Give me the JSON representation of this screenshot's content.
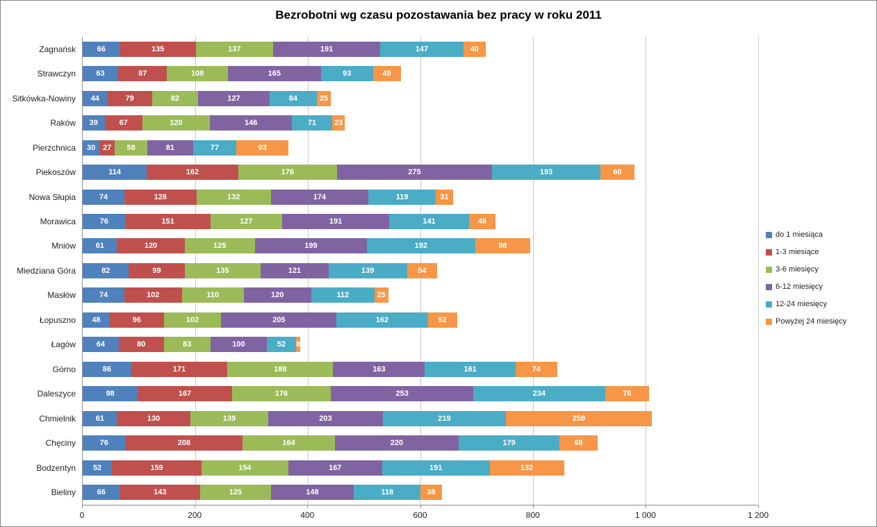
{
  "chart_data": {
    "type": "bar",
    "orientation": "horizontal",
    "stacked": true,
    "title": "Bezrobotni wg czasu pozostawania bez pracy w roku 2011",
    "categories": [
      "Zagnańsk",
      "Strawczyn",
      "Sitkówka-Nowiny",
      "Raków",
      "Pierzchnica",
      "Piekoszów",
      "Nowa Słupia",
      "Morawica",
      "Mniów",
      "Miedziana Góra",
      "Masłów",
      "Łopuszno",
      "Łagów",
      "Górno",
      "Daleszyce",
      "Chmielnik",
      "Chęciny",
      "Bodzentyn",
      "Bieliny"
    ],
    "series": [
      {
        "name": "do 1 miesiąca",
        "color": "#4F81BD",
        "values": [
          66,
          63,
          44,
          39,
          30,
          114,
          74,
          76,
          61,
          82,
          74,
          48,
          64,
          86,
          98,
          61,
          76,
          52,
          66
        ]
      },
      {
        "name": "1-3 miesiące",
        "color": "#C0504D",
        "values": [
          135,
          87,
          79,
          67,
          27,
          162,
          128,
          151,
          120,
          99,
          102,
          96,
          80,
          171,
          167,
          130,
          208,
          159,
          143
        ]
      },
      {
        "name": "3-6 miesięcy",
        "color": "#9BBB59",
        "values": [
          137,
          108,
          82,
          120,
          58,
          176,
          132,
          127,
          125,
          135,
          110,
          102,
          83,
          188,
          176,
          139,
          164,
          154,
          125
        ]
      },
      {
        "name": "6-12 miesięcy",
        "color": "#8064A2",
        "values": [
          191,
          165,
          127,
          146,
          81,
          275,
          174,
          191,
          199,
          121,
          120,
          205,
          100,
          163,
          253,
          203,
          220,
          167,
          148
        ]
      },
      {
        "name": "12-24 miesięcy",
        "color": "#4BACC6",
        "values": [
          147,
          93,
          84,
          71,
          77,
          193,
          119,
          141,
          192,
          139,
          112,
          162,
          52,
          161,
          234,
          219,
          179,
          191,
          118
        ]
      },
      {
        "name": "Powyżej 24 miesięcy",
        "color": "#F79646",
        "values": [
          40,
          49,
          25,
          23,
          93,
          60,
          31,
          48,
          98,
          54,
          25,
          52,
          8,
          74,
          78,
          259,
          68,
          132,
          38
        ]
      }
    ],
    "xlim": [
      0,
      1200
    ],
    "xticks": [
      0,
      200,
      400,
      600,
      800,
      1000,
      1200
    ],
    "xtick_labels": [
      "0",
      "200",
      "400",
      "600",
      "800",
      "1 000",
      "1 200"
    ],
    "grid": "vertical",
    "legend_position": "right",
    "bar_labels": true,
    "bar_label_color": "#FFFFFF"
  }
}
